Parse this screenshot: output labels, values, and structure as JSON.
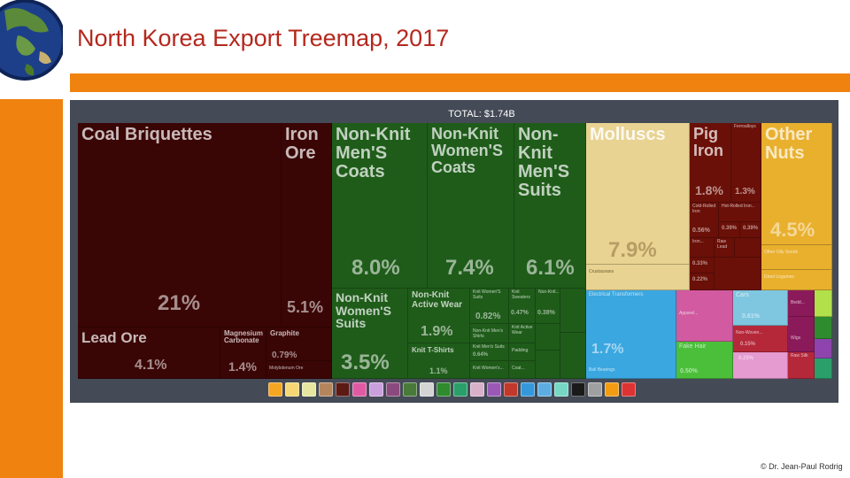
{
  "slide": {
    "title": "North Korea Export Treemap, 2017",
    "footer": "© Dr. Jean-Paul Rodrig"
  },
  "treemap": {
    "total_label": "TOTAL: $1.74B",
    "tiles": {
      "coal": {
        "label": "Coal Briquettes",
        "pct": "21%"
      },
      "iron_ore": {
        "label": "Iron Ore",
        "pct": "5.1%"
      },
      "lead_ore": {
        "label": "Lead Ore",
        "pct": "4.1%"
      },
      "magnesium": {
        "label": "Magnesium Carbonate",
        "pct": "1.4%"
      },
      "graphite": {
        "label": "Graphite",
        "pct": "0.79%"
      },
      "molybdenum": {
        "label": "Molybdenum Ore"
      },
      "men_coats": {
        "label": "Non-Knit Men'S Coats",
        "pct": "8.0%"
      },
      "women_coats": {
        "label": "Non-Knit Women'S Coats",
        "pct": "7.4%"
      },
      "men_suits": {
        "label": "Non-Knit Men'S Suits",
        "pct": "6.1%"
      },
      "women_suits": {
        "label": "Non-Knit Women'S Suits",
        "pct": "3.5%"
      },
      "active_wear": {
        "label": "Non-Knit Active Wear",
        "pct": "1.9%"
      },
      "knit_tshirts": {
        "label": "Knit T-Shirts",
        "pct": "1.1%"
      },
      "nk_womens_suits_small": {
        "label": "Knit Women'S Suits",
        "pct": "0.82%"
      },
      "knit_sweaters": {
        "label": "Knit Sweaters",
        "pct": "0.47%"
      },
      "non_knit_sm": {
        "label": "Non-Knit...",
        "pct": "0.38%"
      },
      "knit_active": {
        "label": "Knit Active Wear"
      },
      "non_knit_men_shirts": {
        "label": "Non-Knit Men's Shirts"
      },
      "knit_men_suits": {
        "label": "Knit Men's Suits",
        "pct": "0.64%"
      },
      "padding": {
        "label": "Padding"
      },
      "knit_womens": {
        "label": "Knit Women's..."
      },
      "coats_other": {
        "label": "Coat..."
      },
      "molluscs": {
        "label": "Molluscs",
        "pct": "7.9%"
      },
      "crustaceans": {
        "label": "Crustaceans"
      },
      "pig_iron": {
        "label": "Pig Iron",
        "pct": "1.8%"
      },
      "ferroalloys": {
        "label": "Ferroalloys",
        "pct": "1.3%"
      },
      "cold_rolled": {
        "label": "Cold-Rolled Iron",
        "pct": "0.56%"
      },
      "hot_rolled": {
        "label": "Hot-Rolled Iron..."
      },
      "small1": {
        "pct": "0.39%"
      },
      "small2": {
        "pct": "0.39%"
      },
      "iron_small": {
        "label": "Iron..."
      },
      "raw_lead": {
        "label": "Raw Lead"
      },
      "red_small1": {
        "pct": "0.33%"
      },
      "red_small2": {
        "pct": "0.22%"
      },
      "other_nuts": {
        "label": "Other Nuts",
        "pct": "4.5%"
      },
      "other_oily_seeds": {
        "label": "Other Oily Seeds"
      },
      "dried_legumes": {
        "label": "Dried Legumes"
      },
      "electrical_transformers": {
        "label": "Electrical Transformers",
        "pct": "1.7%"
      },
      "ball_bearings": {
        "label": "Ball Bearings"
      },
      "cars": {
        "label": "Cars",
        "pct": "0.61%"
      },
      "apparel_small": {
        "label": "Apparel..."
      },
      "pink_small": {
        "label": "Bedd..."
      },
      "red_cars": {
        "label": "Non-Woven..."
      },
      "fake_hair": {
        "label": "Fake Hair",
        "pct": "0.50%"
      },
      "hair_small": {
        "pct": "0.15%"
      },
      "maroon_small": {
        "pct": "0.25%"
      },
      "wigs": {
        "label": "Wigs"
      },
      "raw_silk": {
        "label": "Raw Silk"
      }
    },
    "category_icons": [
      "animal-products-icon",
      "vegetable-products-icon",
      "animal-fats-icon",
      "foodstuffs-icon",
      "mineral-products-icon",
      "chemical-products-icon",
      "plastics-icon",
      "animal-hides-icon",
      "wood-products-icon",
      "paper-goods-icon",
      "textiles-icon",
      "footwear-icon",
      "stone-glass-icon",
      "precious-metals-icon",
      "metals-icon",
      "machines-icon",
      "transportation-icon",
      "instruments-icon",
      "weapons-icon",
      "miscellaneous-icon",
      "arts-antiques-icon",
      "unspecified-icon"
    ],
    "category_colors": [
      "#f5a623",
      "#f7d674",
      "#e6e6a0",
      "#b5865e",
      "#5b1a14",
      "#e05aa3",
      "#c9a0dc",
      "#8b4a7d",
      "#4a7a3a",
      "#d4d4d4",
      "#2e8b2e",
      "#2a9f6a",
      "#d8b0c8",
      "#9b59b6",
      "#c0392b",
      "#3498db",
      "#5dade2",
      "#76d7c4",
      "#1a1a1a",
      "#a0a0a0",
      "#f39c12",
      "#dd3333"
    ]
  }
}
